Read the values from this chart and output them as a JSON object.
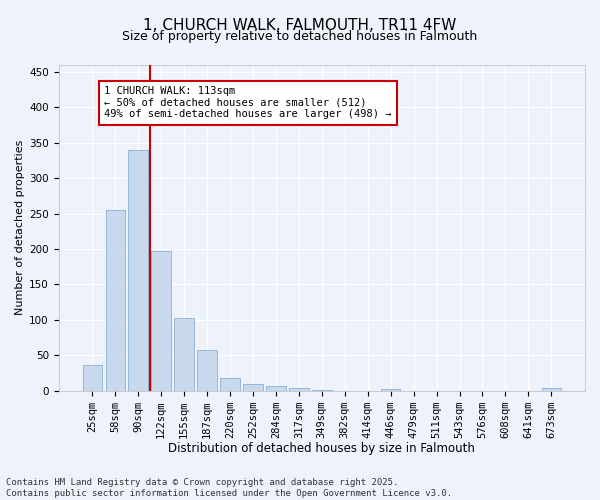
{
  "title": "1, CHURCH WALK, FALMOUTH, TR11 4FW",
  "subtitle": "Size of property relative to detached houses in Falmouth",
  "xlabel": "Distribution of detached houses by size in Falmouth",
  "ylabel": "Number of detached properties",
  "categories": [
    "25sqm",
    "58sqm",
    "90sqm",
    "122sqm",
    "155sqm",
    "187sqm",
    "220sqm",
    "252sqm",
    "284sqm",
    "317sqm",
    "349sqm",
    "382sqm",
    "414sqm",
    "446sqm",
    "479sqm",
    "511sqm",
    "543sqm",
    "576sqm",
    "608sqm",
    "641sqm",
    "673sqm"
  ],
  "values": [
    36,
    255,
    340,
    197,
    103,
    57,
    18,
    10,
    7,
    4,
    1,
    0,
    0,
    2,
    0,
    0,
    0,
    0,
    0,
    0,
    3
  ],
  "bar_color": "#c8d9ee",
  "bar_edge_color": "#8ab0d4",
  "vline_x_index": 2,
  "vline_color": "#cc0000",
  "annotation_text": "1 CHURCH WALK: 113sqm\n← 50% of detached houses are smaller (512)\n49% of semi-detached houses are larger (498) →",
  "annotation_box_color": "#ffffff",
  "annotation_box_edge": "#cc0000",
  "ylim": [
    0,
    460
  ],
  "yticks": [
    0,
    50,
    100,
    150,
    200,
    250,
    300,
    350,
    400,
    450
  ],
  "footer": "Contains HM Land Registry data © Crown copyright and database right 2025.\nContains public sector information licensed under the Open Government Licence v3.0.",
  "bg_color": "#eef2fb",
  "grid_color": "#ffffff",
  "title_fontsize": 11,
  "subtitle_fontsize": 9,
  "xlabel_fontsize": 8.5,
  "ylabel_fontsize": 8,
  "tick_fontsize": 7.5,
  "footer_fontsize": 6.5,
  "annotation_fontsize": 7.5
}
